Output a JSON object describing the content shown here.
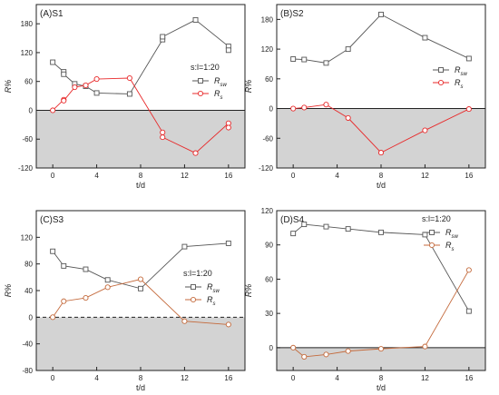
{
  "figure": {
    "ylabel": "R%",
    "xlabel": "t/d",
    "negative_fill": "#d3d3d3",
    "colors": {
      "rsw": "#555555",
      "rs_red": "#e8292a",
      "rs_orange": "#c46a3c"
    }
  },
  "chart_data": [
    {
      "type": "line",
      "panel": "(A)S1",
      "xlabel": "t/d",
      "ylabel": "R%",
      "xlim": [
        -1.5,
        17.5
      ],
      "ylim": [
        -120,
        220
      ],
      "xticks": [
        0,
        4,
        8,
        12,
        16
      ],
      "yticks": [
        -120,
        -60,
        0,
        60,
        120,
        180
      ],
      "legend": {
        "title": "s:l=1:20",
        "placement": "right"
      },
      "baseline_style": "solid",
      "grid": false,
      "series": [
        {
          "name": "Rsw",
          "sub": "sw",
          "marker": "square",
          "color": "#555555",
          "x": [
            0,
            1,
            1,
            2,
            3,
            4,
            7,
            10,
            10,
            13,
            16,
            16
          ],
          "y": [
            100,
            80,
            75,
            55,
            50,
            36,
            34,
            147,
            153,
            188,
            133,
            125
          ]
        },
        {
          "name": "Rs",
          "sub": "s",
          "marker": "circle",
          "color": "#e8292a",
          "x": [
            0,
            1,
            1,
            2,
            3,
            4,
            7,
            10,
            10,
            13,
            16,
            16
          ],
          "y": [
            0,
            22,
            20,
            48,
            52,
            65,
            67,
            -46,
            -56,
            -89,
            -27,
            -36
          ]
        }
      ]
    },
    {
      "type": "line",
      "panel": "(B)S2",
      "xlabel": "t/d",
      "ylabel": "R%",
      "xlim": [
        -1.5,
        17.5
      ],
      "ylim": [
        -120,
        210
      ],
      "xticks": [
        0,
        4,
        8,
        12,
        16
      ],
      "yticks": [
        -120,
        -60,
        0,
        60,
        120,
        180
      ],
      "legend": {
        "title": "",
        "placement": "right"
      },
      "baseline_style": "solid",
      "grid": false,
      "series": [
        {
          "name": "Rsw",
          "sub": "sw",
          "marker": "square",
          "color": "#555555",
          "x": [
            0,
            1,
            3,
            5,
            8,
            12,
            16
          ],
          "y": [
            100,
            99,
            92,
            120,
            190,
            143,
            101
          ]
        },
        {
          "name": "Rs",
          "sub": "s",
          "marker": "circle",
          "color": "#e8292a",
          "x": [
            0,
            1,
            3,
            5,
            8,
            12,
            16
          ],
          "y": [
            0,
            2,
            8,
            -19,
            -89,
            -44,
            -1
          ]
        }
      ]
    },
    {
      "type": "line",
      "panel": "(C)S3",
      "xlabel": "t/d",
      "ylabel": "R%",
      "xlim": [
        -1.5,
        17.5
      ],
      "ylim": [
        -80,
        160
      ],
      "xticks": [
        0,
        4,
        8,
        12,
        16
      ],
      "yticks": [
        -80,
        -40,
        0,
        40,
        80,
        120
      ],
      "legend": {
        "title": "s:l=1:20",
        "placement": "right"
      },
      "baseline_style": "dashed",
      "grid": false,
      "series": [
        {
          "name": "Rsw",
          "sub": "sw",
          "marker": "square",
          "color": "#555555",
          "x": [
            0,
            1,
            3,
            5,
            8,
            12,
            16
          ],
          "y": [
            99,
            77,
            72,
            56,
            43,
            106,
            111
          ]
        },
        {
          "name": "Rs",
          "sub": "s",
          "marker": "circle",
          "color": "#c46a3c",
          "x": [
            0,
            1,
            3,
            5,
            8,
            12,
            16
          ],
          "y": [
            0,
            24,
            29,
            45,
            57,
            -6,
            -11
          ]
        }
      ]
    },
    {
      "type": "line",
      "panel": "(D)S4",
      "xlabel": "t/d",
      "ylabel": "R%",
      "xlim": [
        -1.5,
        17.5
      ],
      "ylim": [
        -20,
        120
      ],
      "xticks": [
        0,
        4,
        8,
        12,
        16
      ],
      "yticks": [
        0,
        30,
        60,
        90,
        120
      ],
      "legend": {
        "title": "s:l=1:20",
        "placement": "top-right"
      },
      "baseline_style": "solid",
      "grid": false,
      "series": [
        {
          "name": "Rsw",
          "sub": "sw",
          "marker": "square",
          "color": "#555555",
          "x": [
            0,
            1,
            3,
            5,
            8,
            12,
            16
          ],
          "y": [
            100,
            108,
            106,
            104,
            101,
            99,
            32
          ]
        },
        {
          "name": "Rs",
          "sub": "s",
          "marker": "circle",
          "color": "#c46a3c",
          "x": [
            0,
            1,
            3,
            5,
            8,
            12,
            16
          ],
          "y": [
            0,
            -8,
            -6,
            -3,
            -1,
            1,
            68
          ]
        }
      ]
    }
  ]
}
